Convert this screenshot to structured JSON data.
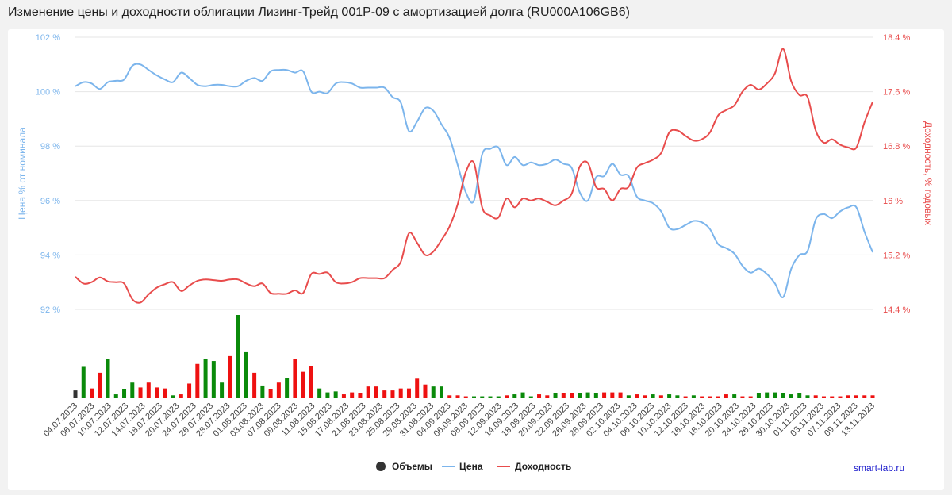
{
  "title": "Изменение цены и доходности облигации Лизинг-Трейд 001Р-09 с амортизацией долга (RU000A106GB6)",
  "credit": "smart-lab.ru",
  "chart_data": {
    "type": "line",
    "title": "Изменение цены и доходности облигации Лизинг-Трейд 001Р-09 с амортизацией долга (RU000A106GB6)",
    "y_left": {
      "label": "Цена % от номинала",
      "ylim": [
        92,
        102
      ],
      "ticks": [
        "92 %",
        "94 %",
        "96 %",
        "98 %",
        "100 %",
        "102 %"
      ]
    },
    "y_right": {
      "label": "Доходность, % годовых",
      "ylim": [
        14.4,
        18.4
      ],
      "ticks": [
        "14.4 %",
        "15.2 %",
        "16 %",
        "16.8 %",
        "17.6 %",
        "18.4 %"
      ]
    },
    "x_labels": [
      "04.07.2023",
      "06.07.2023",
      "10.07.2023",
      "12.07.2023",
      "14.07.2023",
      "18.07.2023",
      "20.07.2023",
      "24.07.2023",
      "26.07.2023",
      "28.07.2023",
      "01.08.2023",
      "03.08.2023",
      "07.08.2023",
      "09.08.2023",
      "11.08.2023",
      "15.08.2023",
      "17.08.2023",
      "21.08.2023",
      "23.08.2023",
      "25.08.2023",
      "29.08.2023",
      "31.08.2023",
      "04.09.2023",
      "06.09.2023",
      "08.09.2023",
      "12.09.2023",
      "14.09.2023",
      "18.09.2023",
      "20.09.2023",
      "22.09.2023",
      "26.09.2023",
      "28.09.2023",
      "02.10.2023",
      "04.10.2023",
      "06.10.2023",
      "10.10.2023",
      "12.10.2023",
      "16.10.2023",
      "18.10.2023",
      "20.10.2023",
      "24.10.2023",
      "26.10.2023",
      "30.10.2023",
      "01.11.2023",
      "03.11.2023",
      "07.11.2023",
      "09.11.2023",
      "13.11.2023"
    ],
    "grid": true,
    "legend_position": "bottom-center",
    "series": [
      {
        "name": "Цена",
        "color": "#7cb5ec",
        "axis": "left",
        "values": [
          100.2,
          100.35,
          100.3,
          100.1,
          100.35,
          100.4,
          100.45,
          100.95,
          101.0,
          100.8,
          100.6,
          100.45,
          100.35,
          100.7,
          100.5,
          100.25,
          100.2,
          100.25,
          100.25,
          100.2,
          100.2,
          100.4,
          100.5,
          100.4,
          100.75,
          100.8,
          100.8,
          100.7,
          100.75,
          100.0,
          100.0,
          99.95,
          100.3,
          100.35,
          100.3,
          100.15,
          100.15,
          100.15,
          100.15,
          99.8,
          99.6,
          98.55,
          98.9,
          99.4,
          99.3,
          98.8,
          98.3,
          97.3,
          96.3,
          96.0,
          97.7,
          97.9,
          97.95,
          97.3,
          97.6,
          97.3,
          97.4,
          97.3,
          97.35,
          97.5,
          97.35,
          97.2,
          96.3,
          96.0,
          96.85,
          96.9,
          97.35,
          96.95,
          96.9,
          96.15,
          96.0,
          95.9,
          95.6,
          95.0,
          94.95,
          95.1,
          95.25,
          95.2,
          94.95,
          94.4,
          94.25,
          94.05,
          93.6,
          93.35,
          93.5,
          93.3,
          92.95,
          92.45,
          93.5,
          94.0,
          94.15,
          95.3,
          95.5,
          95.35,
          95.6,
          95.75,
          95.75,
          94.85,
          94.1
        ]
      },
      {
        "name": "Доходность",
        "color": "#e84c4c",
        "axis": "right",
        "values": [
          14.88,
          14.78,
          14.8,
          14.87,
          14.81,
          14.8,
          14.78,
          14.55,
          14.5,
          14.62,
          14.72,
          14.77,
          14.8,
          14.67,
          14.75,
          14.82,
          14.84,
          14.83,
          14.82,
          14.84,
          14.84,
          14.78,
          14.74,
          14.78,
          14.64,
          14.63,
          14.63,
          14.68,
          14.64,
          14.92,
          14.92,
          14.94,
          14.8,
          14.78,
          14.8,
          14.86,
          14.86,
          14.86,
          14.86,
          14.98,
          15.1,
          15.52,
          15.38,
          15.2,
          15.25,
          15.42,
          15.62,
          15.95,
          16.42,
          16.55,
          15.9,
          15.78,
          15.75,
          16.03,
          15.9,
          16.03,
          16.0,
          16.03,
          15.98,
          15.93,
          16.0,
          16.1,
          16.5,
          16.55,
          16.2,
          16.17,
          16.0,
          16.17,
          16.2,
          16.48,
          16.55,
          16.6,
          16.7,
          17.0,
          17.03,
          16.95,
          16.88,
          16.9,
          17.0,
          17.25,
          17.33,
          17.4,
          17.6,
          17.7,
          17.63,
          17.72,
          17.87,
          18.23,
          17.75,
          17.55,
          17.52,
          17.03,
          16.85,
          16.9,
          16.82,
          16.78,
          16.78,
          17.15,
          17.45
        ]
      },
      {
        "name": "Объемы",
        "color": "#333333",
        "type": "column",
        "up_color": "#0a8a0a",
        "down_color": "#ee1111",
        "values": [
          8,
          32,
          10,
          26,
          40,
          4,
          9,
          16,
          11,
          16,
          11,
          10,
          3,
          4,
          15,
          35,
          40,
          38,
          16,
          43,
          85,
          47,
          26,
          13,
          9,
          16,
          21,
          40,
          27,
          33,
          10,
          6,
          7,
          4,
          6,
          5,
          12,
          12,
          8,
          8,
          10,
          10,
          20,
          14,
          12,
          12,
          3,
          3,
          2,
          2,
          2,
          2,
          2,
          3,
          4,
          6,
          2,
          4,
          3,
          5,
          5,
          5,
          5,
          6,
          5,
          6,
          6,
          6,
          3,
          4,
          3,
          4,
          3,
          4,
          3,
          2,
          3,
          2,
          2,
          2,
          4,
          4,
          2,
          2,
          5,
          6,
          6,
          5,
          4,
          5,
          3,
          3,
          2,
          2,
          2,
          3,
          3,
          3,
          3
        ],
        "directions": [
          "n",
          "u",
          "d",
          "d",
          "u",
          "u",
          "u",
          "u",
          "d",
          "d",
          "d",
          "d",
          "u",
          "d",
          "d",
          "d",
          "u",
          "u",
          "u",
          "d",
          "u",
          "u",
          "d",
          "u",
          "d",
          "d",
          "u",
          "d",
          "d",
          "d",
          "u",
          "u",
          "u",
          "d",
          "d",
          "d",
          "d",
          "d",
          "d",
          "d",
          "d",
          "d",
          "d",
          "d",
          "u",
          "u",
          "d",
          "d",
          "d",
          "u",
          "u",
          "u",
          "u",
          "d",
          "u",
          "u",
          "u",
          "d",
          "d",
          "u",
          "d",
          "d",
          "u",
          "u",
          "u",
          "d",
          "d",
          "d",
          "u",
          "d",
          "d",
          "u",
          "d",
          "u",
          "u",
          "d",
          "u",
          "d",
          "d",
          "d",
          "d",
          "u",
          "d",
          "d",
          "u",
          "u",
          "u",
          "u",
          "u",
          "u",
          "u",
          "d",
          "d",
          "d",
          "d",
          "d",
          "d",
          "d",
          "d"
        ]
      }
    ]
  }
}
